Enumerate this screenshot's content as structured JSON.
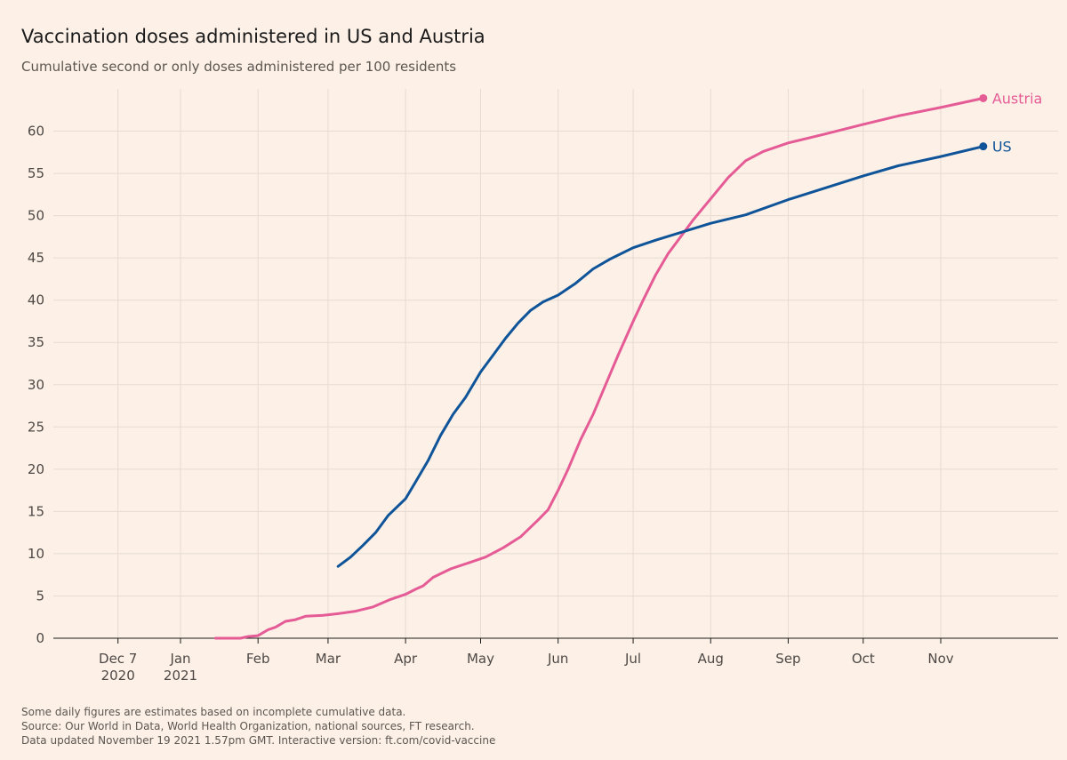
{
  "title": "Vaccination doses administered in US and Austria",
  "subtitle": "Cumulative second or only doses administered per 100 residents",
  "footnotes": [
    "Some daily figures are estimates based on incomplete cumulative data.",
    "Source: Our World in Data, World Health Organization, national sources, FT research.",
    "Data updated November 19 2021 1.57pm GMT. Interactive version: ft.com/covid-vaccine"
  ],
  "chart_data": {
    "type": "line",
    "title": "Vaccination doses administered in US and Austria",
    "subtitle": "Cumulative second or only doses administered per 100 residents",
    "xlabel": "",
    "ylabel": "",
    "xlim": [
      "2020-11-18",
      "2021-12-10"
    ],
    "ylim": [
      0,
      65
    ],
    "grid": true,
    "y_ticks": [
      0,
      5,
      10,
      15,
      20,
      25,
      30,
      35,
      40,
      45,
      50,
      55,
      60
    ],
    "x_ticks": [
      {
        "date": "2020-12-07",
        "line1": "Dec 7",
        "line2": "2020"
      },
      {
        "date": "2021-01-01",
        "line1": "Jan",
        "line2": "2021"
      },
      {
        "date": "2021-02-01",
        "line1": "Feb",
        "line2": ""
      },
      {
        "date": "2021-03-01",
        "line1": "Mar",
        "line2": ""
      },
      {
        "date": "2021-04-01",
        "line1": "Apr",
        "line2": ""
      },
      {
        "date": "2021-05-01",
        "line1": "May",
        "line2": ""
      },
      {
        "date": "2021-06-01",
        "line1": "Jun",
        "line2": ""
      },
      {
        "date": "2021-07-01",
        "line1": "Jul",
        "line2": ""
      },
      {
        "date": "2021-08-01",
        "line1": "Aug",
        "line2": ""
      },
      {
        "date": "2021-09-01",
        "line1": "Sep",
        "line2": ""
      },
      {
        "date": "2021-10-01",
        "line1": "Oct",
        "line2": ""
      },
      {
        "date": "2021-11-01",
        "line1": "Nov",
        "line2": ""
      }
    ],
    "series": [
      {
        "name": "Austria",
        "color": "#e55b95",
        "points": [
          [
            "2021-01-15",
            0
          ],
          [
            "2021-01-25",
            0
          ],
          [
            "2021-01-28",
            0.2
          ],
          [
            "2021-02-01",
            0.3
          ],
          [
            "2021-02-05",
            1.0
          ],
          [
            "2021-02-08",
            1.3
          ],
          [
            "2021-02-12",
            2.0
          ],
          [
            "2021-02-16",
            2.2
          ],
          [
            "2021-02-20",
            2.6
          ],
          [
            "2021-02-27",
            2.7
          ],
          [
            "2021-03-05",
            2.9
          ],
          [
            "2021-03-12",
            3.2
          ],
          [
            "2021-03-19",
            3.7
          ],
          [
            "2021-03-26",
            4.6
          ],
          [
            "2021-04-01",
            5.2
          ],
          [
            "2021-04-05",
            5.8
          ],
          [
            "2021-04-08",
            6.2
          ],
          [
            "2021-04-12",
            7.2
          ],
          [
            "2021-04-19",
            8.2
          ],
          [
            "2021-04-26",
            8.9
          ],
          [
            "2021-05-03",
            9.6
          ],
          [
            "2021-05-10",
            10.7
          ],
          [
            "2021-05-17",
            12.0
          ],
          [
            "2021-05-24",
            14.0
          ],
          [
            "2021-05-28",
            15.2
          ],
          [
            "2021-06-01",
            17.5
          ],
          [
            "2021-06-05",
            20.0
          ],
          [
            "2021-06-10",
            23.5
          ],
          [
            "2021-06-15",
            26.5
          ],
          [
            "2021-06-20",
            30.0
          ],
          [
            "2021-06-25",
            33.5
          ],
          [
            "2021-07-01",
            37.5
          ],
          [
            "2021-07-05",
            40.0
          ],
          [
            "2021-07-10",
            43.0
          ],
          [
            "2021-07-15",
            45.5
          ],
          [
            "2021-07-20",
            47.5
          ],
          [
            "2021-07-25",
            49.5
          ],
          [
            "2021-08-01",
            52.0
          ],
          [
            "2021-08-08",
            54.5
          ],
          [
            "2021-08-15",
            56.5
          ],
          [
            "2021-08-22",
            57.6
          ],
          [
            "2021-09-01",
            58.6
          ],
          [
            "2021-09-15",
            59.6
          ],
          [
            "2021-10-01",
            60.8
          ],
          [
            "2021-10-15",
            61.8
          ],
          [
            "2021-11-01",
            62.8
          ],
          [
            "2021-11-18",
            63.9
          ]
        ]
      },
      {
        "name": "US",
        "color": "#0f5499",
        "points": [
          [
            "2021-03-05",
            8.5
          ],
          [
            "2021-03-10",
            9.6
          ],
          [
            "2021-03-15",
            11.0
          ],
          [
            "2021-03-20",
            12.5
          ],
          [
            "2021-03-25",
            14.5
          ],
          [
            "2021-04-01",
            16.5
          ],
          [
            "2021-04-05",
            18.5
          ],
          [
            "2021-04-10",
            21.0
          ],
          [
            "2021-04-15",
            24.0
          ],
          [
            "2021-04-20",
            26.5
          ],
          [
            "2021-04-25",
            28.5
          ],
          [
            "2021-05-01",
            31.5
          ],
          [
            "2021-05-06",
            33.5
          ],
          [
            "2021-05-11",
            35.5
          ],
          [
            "2021-05-16",
            37.3
          ],
          [
            "2021-05-21",
            38.8
          ],
          [
            "2021-05-26",
            39.8
          ],
          [
            "2021-06-01",
            40.6
          ],
          [
            "2021-06-08",
            42.0
          ],
          [
            "2021-06-15",
            43.7
          ],
          [
            "2021-06-22",
            44.9
          ],
          [
            "2021-07-01",
            46.2
          ],
          [
            "2021-07-10",
            47.1
          ],
          [
            "2021-07-20",
            48.0
          ],
          [
            "2021-08-01",
            49.1
          ],
          [
            "2021-08-15",
            50.1
          ],
          [
            "2021-09-01",
            51.9
          ],
          [
            "2021-09-15",
            53.2
          ],
          [
            "2021-10-01",
            54.7
          ],
          [
            "2021-10-15",
            55.9
          ],
          [
            "2021-11-01",
            57.0
          ],
          [
            "2021-11-18",
            58.2
          ]
        ]
      }
    ]
  }
}
